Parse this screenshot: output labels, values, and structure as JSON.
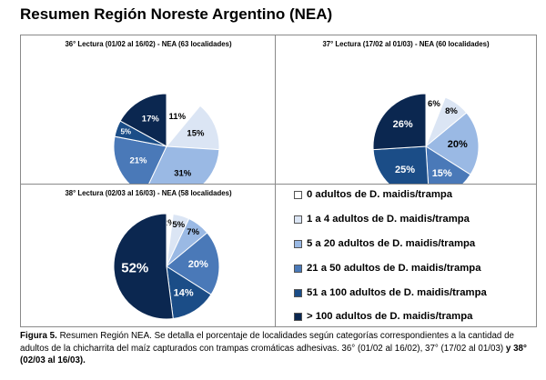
{
  "page": {
    "title": "Resumen Región Noreste Argentino (NEA)"
  },
  "categories": [
    "0 adultos de D. maidis/trampa",
    "1 a 4 adultos de D. maidis/trampa",
    "5 a 20 adultos de D. maidis/trampa",
    "21 a 50 adultos de D. maidis/trampa",
    "51 a 100 adultos de D. maidis/trampa",
    "> 100 adultos de D. maidis/trampa"
  ],
  "colors": [
    "#ffffff",
    "#dbe5f4",
    "#9ab9e4",
    "#4a79b8",
    "#1b4d87",
    "#0b2750"
  ],
  "chart_data": [
    {
      "type": "pie",
      "title": "36° Lectura (01/02 al 16/02) - NEA (63 localidades)",
      "categories": [
        "0 adultos de D. maidis/trampa",
        "1 a 4 adultos de D. maidis/trampa",
        "5 a 20 adultos de D. maidis/trampa",
        "21 a 50 adultos de D. maidis/trampa",
        "51 a 100 adultos de D. maidis/trampa",
        "> 100 adultos de D. maidis/trampa"
      ],
      "values": [
        11,
        15,
        31,
        21,
        5,
        17
      ],
      "labels": [
        "11%",
        "15%",
        "31%",
        "21%",
        "5%",
        "17%"
      ]
    },
    {
      "type": "pie",
      "title": "37° Lectura (17/02 al 01/03) - NEA (60 localidades)",
      "categories": [
        "0 adultos de D. maidis/trampa",
        "1 a 4 adultos de D. maidis/trampa",
        "5 a 20 adultos de D. maidis/trampa",
        "21 a 50 adultos de D. maidis/trampa",
        "51 a 100 adultos de D. maidis/trampa",
        "> 100 adultos de D. maidis/trampa"
      ],
      "values": [
        6,
        8,
        20,
        15,
        25,
        26
      ],
      "labels": [
        "6%",
        "8%",
        "20%",
        "15%",
        "25%",
        "26%"
      ]
    },
    {
      "type": "pie",
      "title": "38° Lectura (02/03 al 16/03) - NEA (58 localidades)",
      "categories": [
        "0 adultos de D. maidis/trampa",
        "1 a 4 adultos de D. maidis/trampa",
        "5 a 20 adultos de D. maidis/trampa",
        "21 a 50 adultos de D. maidis/trampa",
        "51 a 100 adultos de D. maidis/trampa",
        "> 100 adultos de D. maidis/trampa"
      ],
      "values": [
        2,
        5,
        7,
        20,
        14,
        52
      ],
      "labels": [
        "2%",
        "5%",
        "7%",
        "20%",
        "14%",
        "52%"
      ]
    }
  ],
  "caption": {
    "label": "Figura 5.",
    "text": " Resumen Región NEA. Se detalla el porcentaje de localidades según categorías correspondientes a la cantidad de adultos de la chicharrita del maíz capturados con trampas cromáticas adhesivas. 36° (01/02 al 16/02), 37° (17/02 al 01/03) ",
    "tail": "y 38° (02/03 al 16/03)."
  }
}
